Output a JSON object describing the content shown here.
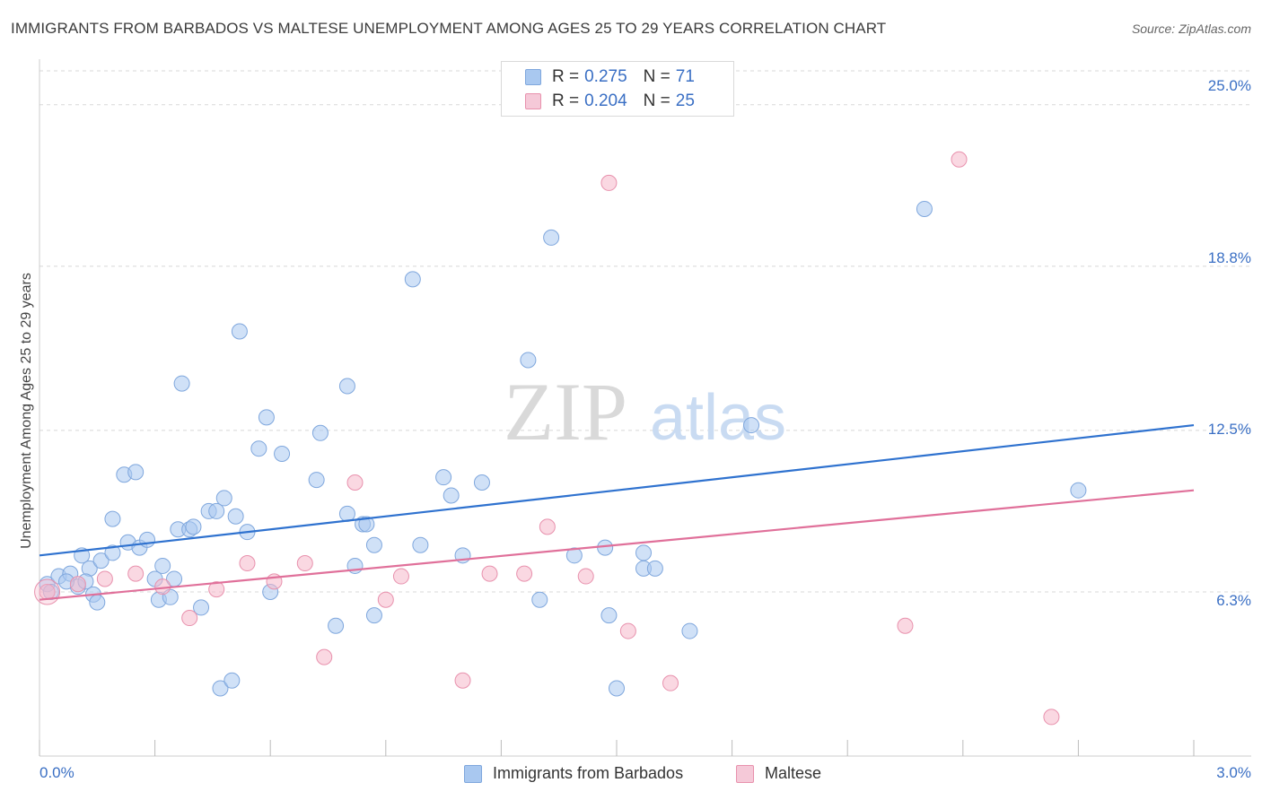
{
  "title": "IMMIGRANTS FROM BARBADOS VS MALTESE UNEMPLOYMENT AMONG AGES 25 TO 29 YEARS CORRELATION CHART",
  "source": "Source: ZipAtlas.com",
  "watermark": {
    "zip": "ZIP",
    "atlas": "atlas"
  },
  "legend": {
    "rows": [
      {
        "r_label": "R =",
        "r_value": "0.275",
        "n_label": "N =",
        "n_value": "71"
      },
      {
        "r_label": "R =",
        "r_value": "0.204",
        "n_label": "N =",
        "n_value": "25"
      }
    ]
  },
  "colors": {
    "blue_fill": "#a9c8f0",
    "blue_stroke": "#7fa7dd",
    "blue_line": "#2f72cf",
    "pink_fill": "#f5b8cb",
    "pink_stroke": "#e891ad",
    "pink_line": "#e0709a",
    "tick_text": "#3a6fc4",
    "grid": "#d8d8d8"
  },
  "chart_data": {
    "type": "scatter",
    "title": "IMMIGRANTS FROM BARBADOS VS MALTESE UNEMPLOYMENT AMONG AGES 25 TO 29 YEARS CORRELATION CHART",
    "xlabel": "",
    "ylabel": "Unemployment Among Ages 25 to 29 years",
    "xlim": [
      0,
      3.0
    ],
    "ylim": [
      0,
      26.3
    ],
    "x_tick_labels": [
      "0.0%",
      "3.0%"
    ],
    "y_ticks": [
      6.3,
      12.5,
      18.8,
      25.0
    ],
    "y_tick_labels": [
      "6.3%",
      "12.5%",
      "18.8%",
      "25.0%"
    ],
    "grid": true,
    "series": [
      {
        "name": "Immigrants from Barbados",
        "color": "#a9c8f0",
        "r": 0.275,
        "n": 71,
        "trend": {
          "x": [
            0,
            3.0
          ],
          "y": [
            7.7,
            12.7
          ]
        },
        "points": [
          [
            0.02,
            6.6
          ],
          [
            0.05,
            6.9
          ],
          [
            0.08,
            7.0
          ],
          [
            0.1,
            6.5
          ],
          [
            0.07,
            6.7
          ],
          [
            0.11,
            7.7
          ],
          [
            0.13,
            7.2
          ],
          [
            0.14,
            6.2
          ],
          [
            0.16,
            7.5
          ],
          [
            0.12,
            6.7
          ],
          [
            0.19,
            7.8
          ],
          [
            0.15,
            5.9
          ],
          [
            0.19,
            9.1
          ],
          [
            0.22,
            10.8
          ],
          [
            0.25,
            10.9
          ],
          [
            0.23,
            8.2
          ],
          [
            0.26,
            8.0
          ],
          [
            0.28,
            8.3
          ],
          [
            0.3,
            6.8
          ],
          [
            0.31,
            6.0
          ],
          [
            0.32,
            7.3
          ],
          [
            0.34,
            6.1
          ],
          [
            0.35,
            6.8
          ],
          [
            0.36,
            8.7
          ],
          [
            0.37,
            14.3
          ],
          [
            0.39,
            8.7
          ],
          [
            0.4,
            8.8
          ],
          [
            0.42,
            5.7
          ],
          [
            0.44,
            9.4
          ],
          [
            0.46,
            9.4
          ],
          [
            0.48,
            9.9
          ],
          [
            0.47,
            2.6
          ],
          [
            0.5,
            2.9
          ],
          [
            0.51,
            9.2
          ],
          [
            0.52,
            16.3
          ],
          [
            0.54,
            8.6
          ],
          [
            0.57,
            11.8
          ],
          [
            0.59,
            13.0
          ],
          [
            0.6,
            6.3
          ],
          [
            0.63,
            11.6
          ],
          [
            0.72,
            10.6
          ],
          [
            0.73,
            12.4
          ],
          [
            0.77,
            5.0
          ],
          [
            0.8,
            14.2
          ],
          [
            0.8,
            9.3
          ],
          [
            0.82,
            7.3
          ],
          [
            0.84,
            8.9
          ],
          [
            0.85,
            8.9
          ],
          [
            0.87,
            8.1
          ],
          [
            0.87,
            5.4
          ],
          [
            0.97,
            18.3
          ],
          [
            0.99,
            8.1
          ],
          [
            1.05,
            10.7
          ],
          [
            1.07,
            10.0
          ],
          [
            1.1,
            7.7
          ],
          [
            1.15,
            10.5
          ],
          [
            1.27,
            15.2
          ],
          [
            1.3,
            6.0
          ],
          [
            1.33,
            19.9
          ],
          [
            1.39,
            7.7
          ],
          [
            1.47,
            8.0
          ],
          [
            1.48,
            5.4
          ],
          [
            1.5,
            2.6
          ],
          [
            1.57,
            7.8
          ],
          [
            1.57,
            7.2
          ],
          [
            1.6,
            7.2
          ],
          [
            1.69,
            4.8
          ],
          [
            1.85,
            12.7
          ],
          [
            2.3,
            21.0
          ],
          [
            2.7,
            10.2
          ],
          [
            0.03,
            6.3
          ]
        ]
      },
      {
        "name": "Maltese",
        "color": "#f5b8cb",
        "r": 0.204,
        "n": 25,
        "trend": {
          "x": [
            0,
            3.0
          ],
          "y": [
            6.0,
            10.2
          ]
        },
        "points": [
          [
            0.02,
            6.3
          ],
          [
            0.1,
            6.6
          ],
          [
            0.17,
            6.8
          ],
          [
            0.25,
            7.0
          ],
          [
            0.32,
            6.5
          ],
          [
            0.39,
            5.3
          ],
          [
            0.46,
            6.4
          ],
          [
            0.54,
            7.4
          ],
          [
            0.61,
            6.7
          ],
          [
            0.69,
            7.4
          ],
          [
            0.74,
            3.8
          ],
          [
            0.82,
            10.5
          ],
          [
            0.9,
            6.0
          ],
          [
            0.94,
            6.9
          ],
          [
            1.1,
            2.9
          ],
          [
            1.17,
            7.0
          ],
          [
            1.26,
            7.0
          ],
          [
            1.32,
            8.8
          ],
          [
            1.42,
            6.9
          ],
          [
            1.48,
            22.0
          ],
          [
            1.53,
            4.8
          ],
          [
            1.64,
            2.8
          ],
          [
            2.25,
            5.0
          ],
          [
            2.39,
            22.9
          ],
          [
            2.63,
            1.5
          ]
        ]
      }
    ]
  },
  "bottom_legend": [
    {
      "label": "Immigrants from Barbados"
    },
    {
      "label": "Maltese"
    }
  ]
}
